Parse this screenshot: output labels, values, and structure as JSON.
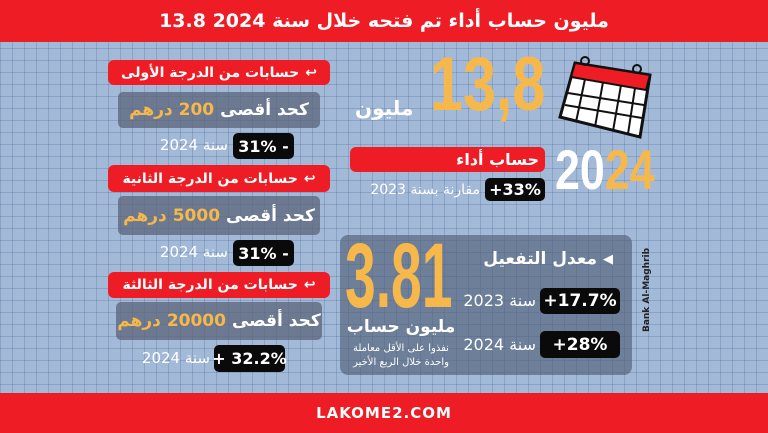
{
  "header": {
    "title": "13.8 مليون حساب أداء تم فتحه خلال سنة 2024"
  },
  "tiers": [
    {
      "title": "حسابات من الدرجة الأولى",
      "limit_prefix": "كحد أقصى",
      "limit_value": "200 درهم",
      "change": "31% -",
      "year": "سنة 2024"
    },
    {
      "title": "حسابات من الدرجة الثانية",
      "limit_prefix": "كحد أقصى",
      "limit_value": "5000 درهم",
      "change": "31% -",
      "year": "سنة 2024"
    },
    {
      "title": "حسابات من الدرجة الثالثة",
      "limit_prefix": "كحد أقصى",
      "limit_value": "20000 درهم",
      "change": "+ 32.2%",
      "year": "سنة 2024"
    }
  ],
  "total": {
    "value": "13,8",
    "unit": "مليون",
    "label": "حساب أداء",
    "year_white": "20",
    "year_yellow": "24",
    "change": "+33%",
    "comparison": "مقارنة بسنة 2023"
  },
  "activation": {
    "value": "3.81",
    "unit": "مليون حساب",
    "note1": "نفذوا على الأقل معاملة",
    "note2": "واحدة خلال الربع الأخير",
    "title": "معدل التفعيل",
    "rows": [
      {
        "year": "سنة 2023",
        "change": "+17.7%"
      },
      {
        "year": "سنة 2024",
        "change": "+28%"
      }
    ]
  },
  "source": "Bank Al-Maghrib",
  "footer": {
    "site": "LAKOME2.COM"
  },
  "colors": {
    "red": "#ee1c24",
    "yellow": "#f7b84b"
  }
}
